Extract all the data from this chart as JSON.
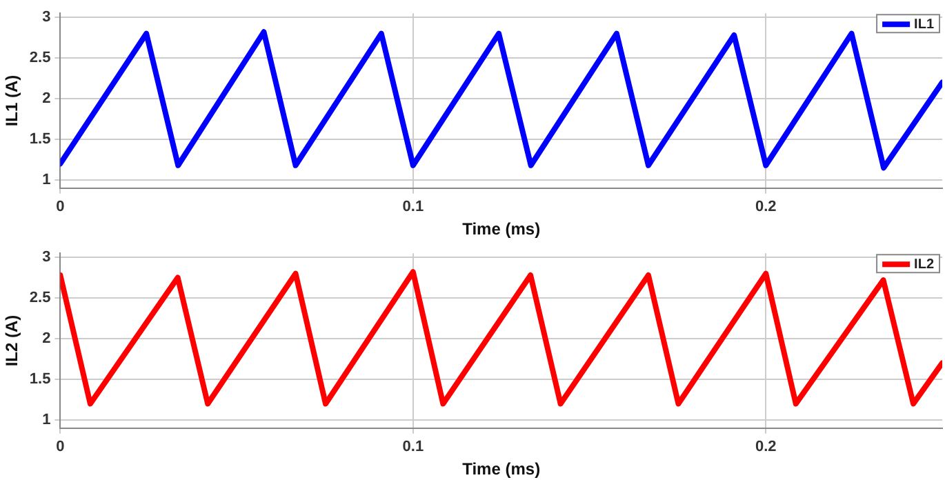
{
  "chart_data": [
    {
      "type": "line",
      "xlabel": "Time (ms)",
      "ylabel": "IL1 (A)",
      "xlim": [
        0,
        0.25
      ],
      "ylim": [
        0.9,
        3.05
      ],
      "xticks": [
        0,
        0.1,
        0.2
      ],
      "yticks": [
        1,
        1.5,
        2,
        2.5,
        3
      ],
      "grid": true,
      "legend": "top right",
      "marker": "none",
      "line_style": "solid",
      "series": [
        {
          "name": "IL1",
          "color": "#0000ff",
          "x": [
            0,
            0.0244,
            0.0334,
            0.0577,
            0.0667,
            0.091,
            0.1,
            0.1243,
            0.1334,
            0.1577,
            0.1667,
            0.191,
            0.2,
            0.2243,
            0.2334,
            0.25
          ],
          "values": [
            1.2,
            2.8,
            1.18,
            2.82,
            1.18,
            2.8,
            1.18,
            2.8,
            1.18,
            2.8,
            1.18,
            2.78,
            1.18,
            2.8,
            1.15,
            2.2
          ]
        }
      ]
    },
    {
      "type": "line",
      "xlabel": "Time (ms)",
      "ylabel": "IL2 (A)",
      "xlim": [
        0,
        0.25
      ],
      "ylim": [
        0.9,
        3.05
      ],
      "xticks": [
        0,
        0.1,
        0.2
      ],
      "yticks": [
        1,
        1.5,
        2,
        2.5,
        3
      ],
      "grid": true,
      "legend": "top right",
      "marker": "none",
      "line_style": "solid",
      "series": [
        {
          "name": "IL2",
          "color": "#ff0000",
          "x": [
            0,
            0.0085,
            0.0333,
            0.0418,
            0.0667,
            0.0752,
            0.1,
            0.1085,
            0.1333,
            0.1418,
            0.1667,
            0.1752,
            0.2,
            0.2085,
            0.2333,
            0.2418,
            0.25
          ],
          "values": [
            2.78,
            1.2,
            2.75,
            1.2,
            2.8,
            1.2,
            2.82,
            1.2,
            2.78,
            1.2,
            2.78,
            1.2,
            2.8,
            1.2,
            2.72,
            1.2,
            1.7
          ]
        }
      ]
    }
  ]
}
